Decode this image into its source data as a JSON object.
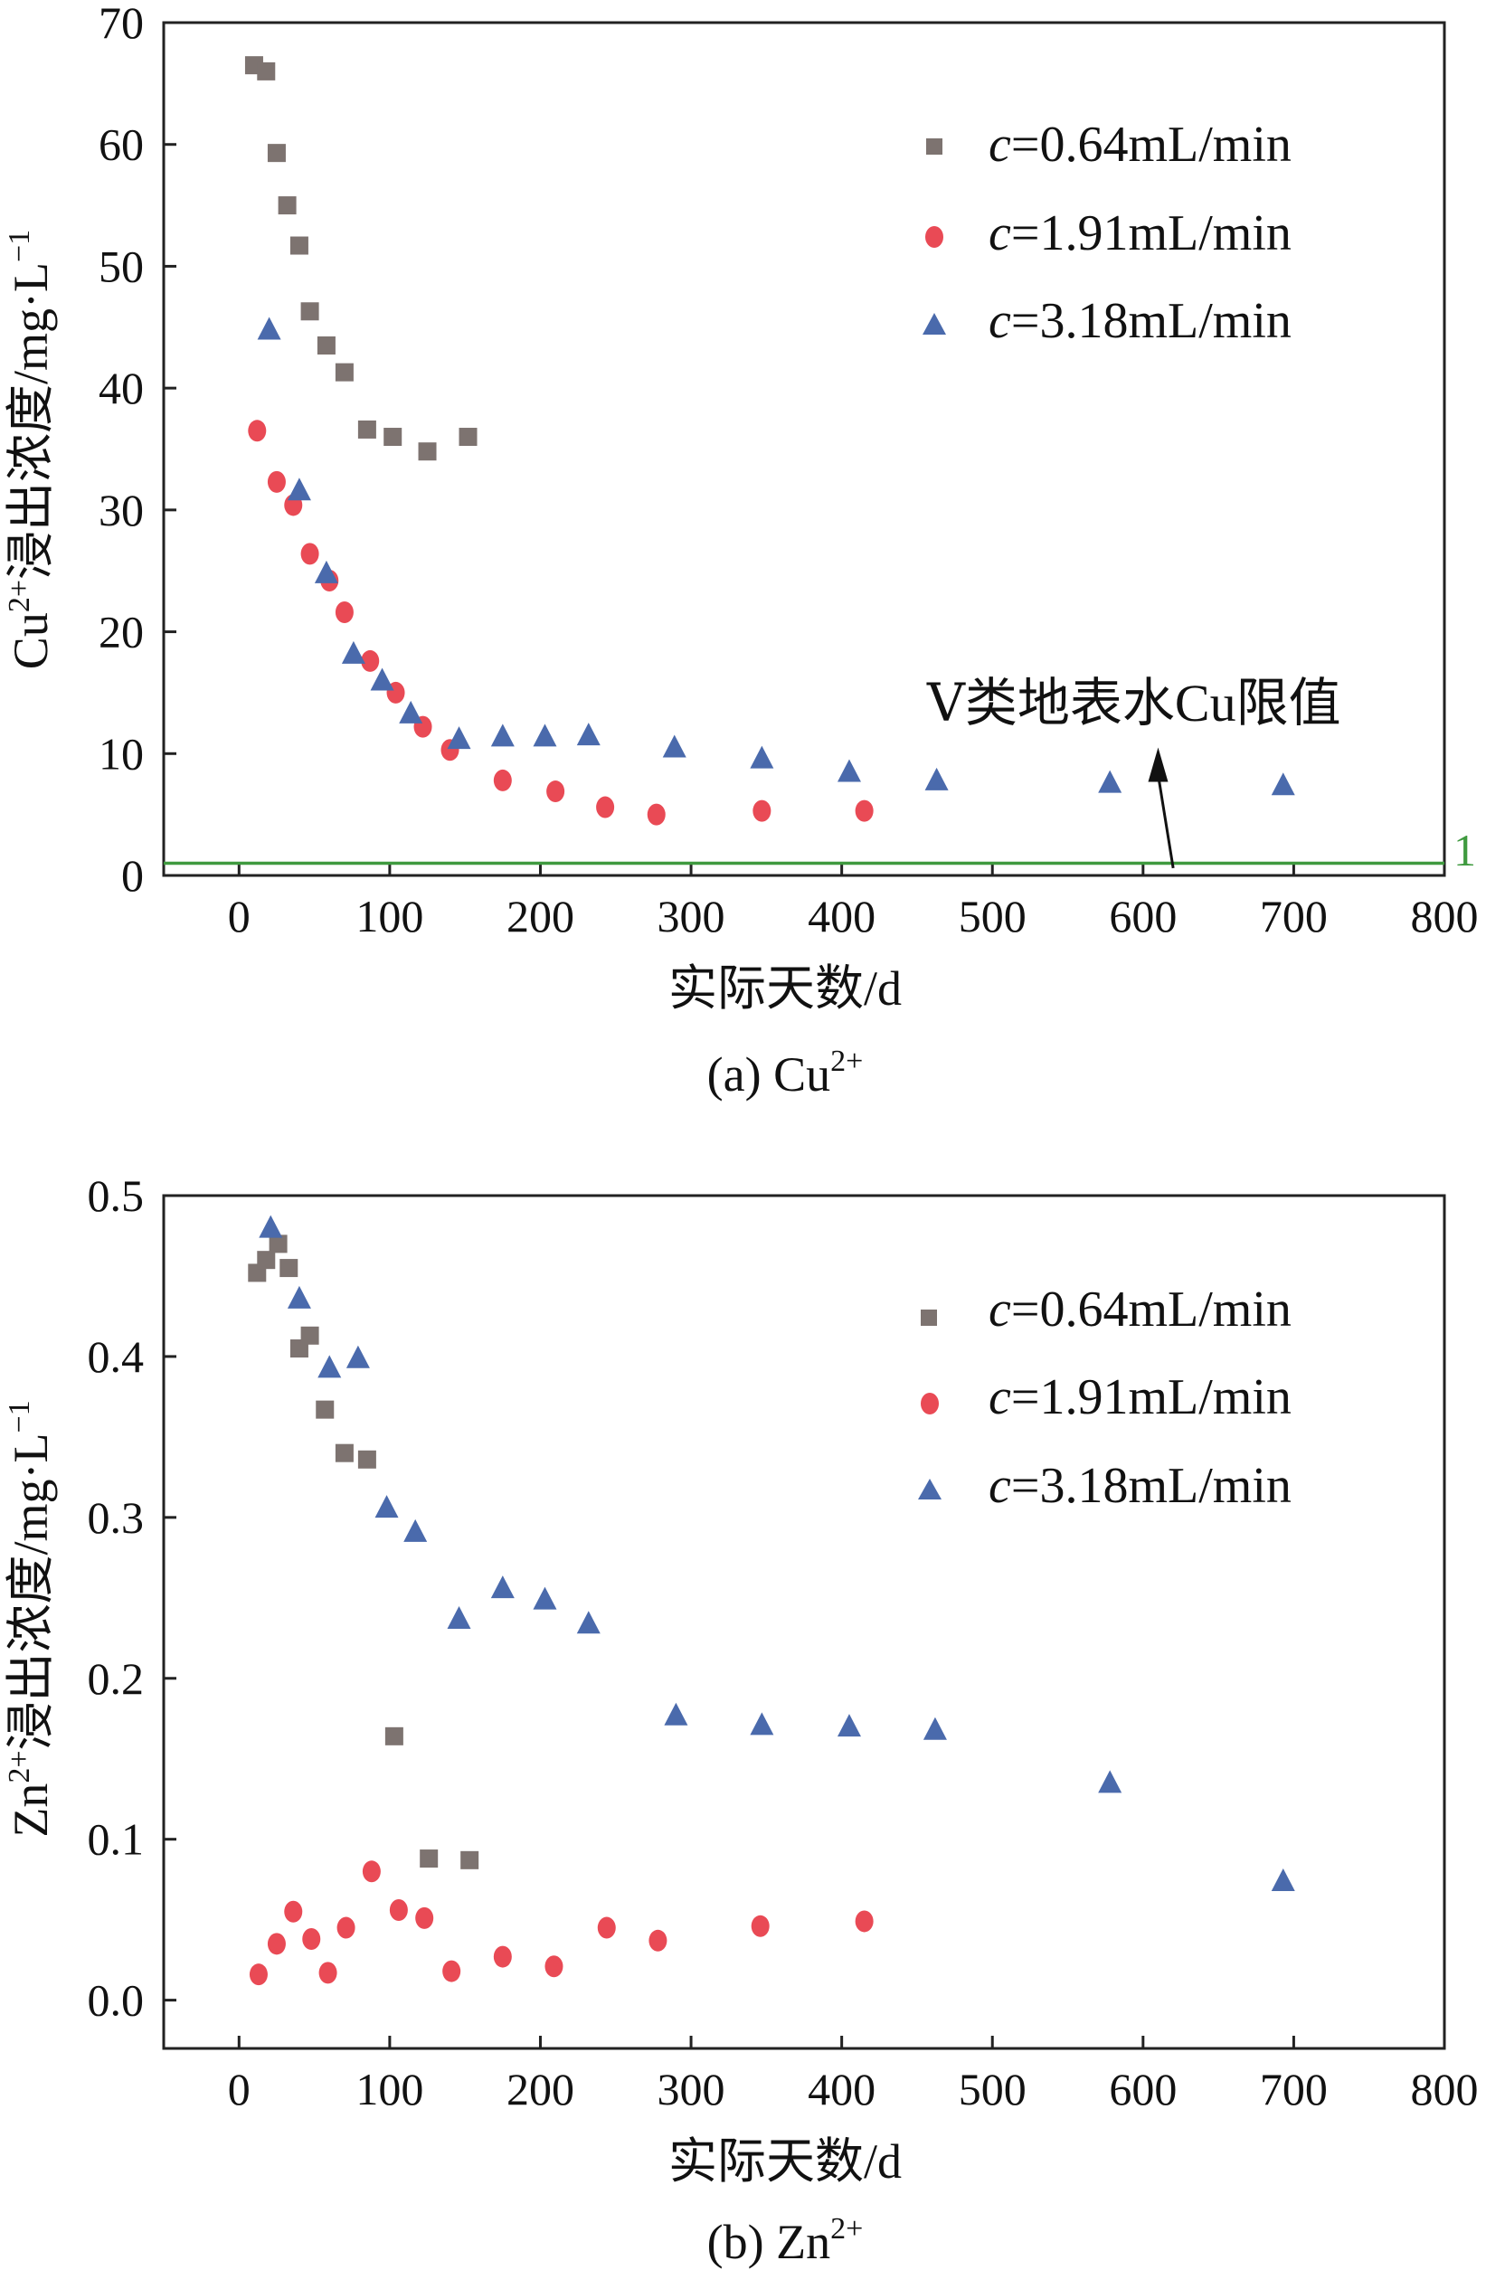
{
  "chart_data": [
    {
      "type": "scatter",
      "panel_caption": "(a) Cu",
      "panel_caption_sup": "2+",
      "ylabel_main": "Cu",
      "ylabel_sup": "2+",
      "ylabel_rest": "浸出浓度/mg·L",
      "ylabel_unit_sup": "−1",
      "xlabel": "实际天数/d",
      "xlim": [
        -50,
        800
      ],
      "ylim": [
        0,
        70
      ],
      "xticks": [
        0,
        100,
        200,
        300,
        400,
        500,
        600,
        700,
        800
      ],
      "yticks": [
        0,
        10,
        20,
        30,
        40,
        50,
        60,
        70
      ],
      "legend_position": "top-right",
      "series": [
        {
          "name": "c=0.64mL/min",
          "c_symbol": "c",
          "value_text": "=0.64mL/min",
          "marker": "square",
          "color": "#7d7370",
          "x": [
            10,
            18,
            25,
            32,
            40,
            47,
            58,
            70,
            85,
            102,
            125,
            152
          ],
          "y": [
            66.5,
            66,
            59.3,
            55,
            51.7,
            46.3,
            43.5,
            41.3,
            36.6,
            36,
            34.8,
            36
          ]
        },
        {
          "name": "c=1.91mL/min",
          "c_symbol": "c",
          "value_text": "=1.91mL/min",
          "marker": "circle",
          "color": "#e94a55",
          "x": [
            12,
            25,
            36,
            47,
            60,
            70,
            87,
            104,
            122,
            140,
            175,
            210,
            243,
            277,
            347,
            415
          ],
          "y": [
            36.5,
            32.3,
            30.4,
            26.4,
            24.2,
            21.6,
            17.6,
            15,
            12.2,
            10.3,
            7.8,
            6.9,
            5.6,
            5,
            5.3,
            5.3
          ]
        },
        {
          "name": "c=3.18mL/min",
          "c_symbol": "c",
          "value_text": "=3.18mL/min",
          "marker": "triangle",
          "color": "#4a6aac",
          "x": [
            20,
            40,
            58,
            76,
            95,
            114,
            146,
            175,
            203,
            232,
            289,
            347,
            405,
            463,
            578,
            693
          ],
          "y": [
            44.8,
            31.6,
            24.8,
            18.2,
            16,
            13.3,
            11.2,
            11.4,
            11.4,
            11.5,
            10.5,
            9.6,
            8.5,
            7.8,
            7.6,
            7.4
          ]
        }
      ],
      "reference_line": {
        "y": 1,
        "label": "1",
        "color": "#3f9a3f"
      },
      "annotation": {
        "text": "Ⅴ类地表水Cu限值",
        "arrow_from": [
          620,
          0.6
        ],
        "arrow_to": [
          610,
          10.5
        ]
      }
    },
    {
      "type": "scatter",
      "panel_caption": "(b) Zn",
      "panel_caption_sup": "2+",
      "ylabel_main": "Zn",
      "ylabel_sup": "2+",
      "ylabel_rest": "浸出浓度/mg·L",
      "ylabel_unit_sup": "−1",
      "xlabel": "实际天数/d",
      "xlim": [
        -50,
        800
      ],
      "ylim": [
        -0.03,
        0.5
      ],
      "xticks": [
        0,
        100,
        200,
        300,
        400,
        500,
        600,
        700,
        800
      ],
      "yticks": [
        "0.0",
        "0.1",
        "0.2",
        "0.3",
        "0.4",
        "0.5"
      ],
      "legend_position": "top-right",
      "series": [
        {
          "name": "c=0.64mL/min",
          "c_symbol": "c",
          "value_text": "=0.64mL/min",
          "marker": "square",
          "color": "#7d7370",
          "x": [
            12,
            18,
            26,
            33,
            40,
            47,
            57,
            70,
            85,
            103,
            126,
            153
          ],
          "y": [
            0.452,
            0.46,
            0.47,
            0.455,
            0.405,
            0.413,
            0.367,
            0.34,
            0.336,
            0.164,
            0.088,
            0.087
          ]
        },
        {
          "name": "c=1.91mL/min",
          "c_symbol": "c",
          "value_text": "=1.91mL/min",
          "marker": "circle",
          "color": "#e94a55",
          "x": [
            13,
            25,
            36,
            48,
            59,
            71,
            88,
            106,
            123,
            141,
            175,
            209,
            244,
            278,
            346,
            415
          ],
          "y": [
            0.016,
            0.035,
            0.055,
            0.038,
            0.017,
            0.045,
            0.08,
            0.056,
            0.051,
            0.018,
            0.027,
            0.021,
            0.045,
            0.037,
            0.046,
            0.049
          ]
        },
        {
          "name": "c=3.18mL/min",
          "c_symbol": "c",
          "value_text": "=3.18mL/min",
          "marker": "triangle",
          "color": "#4a6aac",
          "x": [
            21,
            40,
            60,
            79,
            98,
            117,
            146,
            175,
            203,
            232,
            290,
            347,
            405,
            462,
            578,
            693
          ],
          "y": [
            0.48,
            0.436,
            0.393,
            0.399,
            0.306,
            0.291,
            0.237,
            0.256,
            0.249,
            0.234,
            0.177,
            0.171,
            0.17,
            0.168,
            0.135,
            0.074
          ]
        }
      ]
    }
  ]
}
